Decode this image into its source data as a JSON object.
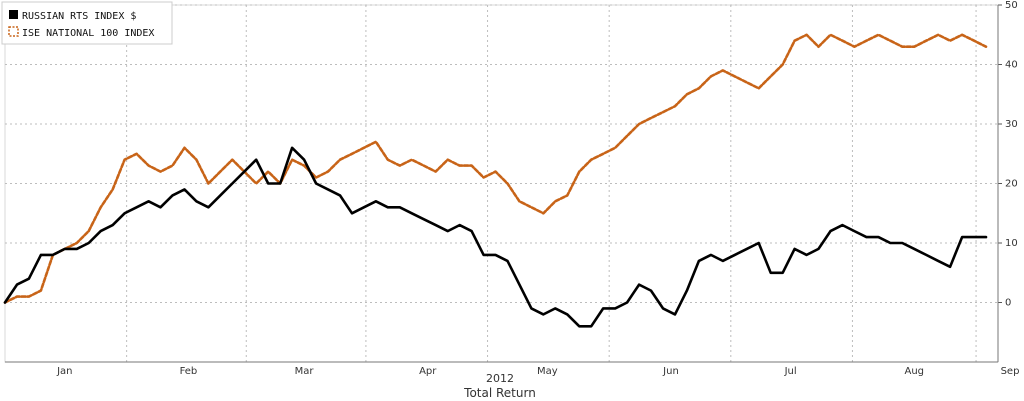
{
  "chart_data": {
    "type": "line",
    "title": "",
    "xlabel": "2012",
    "caption": "Total Return",
    "ylabel": "",
    "ylim": [
      -10,
      50
    ],
    "xlim": [
      0,
      249
    ],
    "y_ticks": [
      0,
      10,
      20,
      30,
      40,
      50
    ],
    "y_axis_side": "right",
    "month_labels": [
      {
        "label": "Jan",
        "x": 15
      },
      {
        "label": "Feb",
        "x": 46
      },
      {
        "label": "Mar",
        "x": 75
      },
      {
        "label": "Apr",
        "x": 106
      },
      {
        "label": "May",
        "x": 136
      },
      {
        "label": "Jun",
        "x": 167
      },
      {
        "label": "Jul",
        "x": 197
      },
      {
        "label": "Aug",
        "x": 228
      },
      {
        "label": "Sep",
        "x": 259
      }
    ],
    "grid": true,
    "legend_position": "top-left",
    "series": [
      {
        "name": "RUSSIAN RTS INDEX $",
        "color": "#000000",
        "style": "solid",
        "points": [
          [
            0,
            0
          ],
          [
            3,
            3
          ],
          [
            6,
            4
          ],
          [
            9,
            8
          ],
          [
            12,
            8
          ],
          [
            15,
            9
          ],
          [
            18,
            9
          ],
          [
            21,
            10
          ],
          [
            24,
            12
          ],
          [
            27,
            13
          ],
          [
            30,
            15
          ],
          [
            33,
            16
          ],
          [
            36,
            17
          ],
          [
            39,
            16
          ],
          [
            42,
            18
          ],
          [
            45,
            19
          ],
          [
            48,
            17
          ],
          [
            51,
            16
          ],
          [
            54,
            18
          ],
          [
            57,
            20
          ],
          [
            60,
            22
          ],
          [
            63,
            24
          ],
          [
            66,
            20
          ],
          [
            69,
            20
          ],
          [
            72,
            26
          ],
          [
            75,
            24
          ],
          [
            78,
            20
          ],
          [
            81,
            19
          ],
          [
            84,
            18
          ],
          [
            87,
            15
          ],
          [
            90,
            16
          ],
          [
            93,
            17
          ],
          [
            96,
            16
          ],
          [
            99,
            16
          ],
          [
            102,
            15
          ],
          [
            105,
            14
          ],
          [
            108,
            13
          ],
          [
            111,
            12
          ],
          [
            114,
            13
          ],
          [
            117,
            12
          ],
          [
            120,
            8
          ],
          [
            123,
            8
          ],
          [
            126,
            7
          ],
          [
            129,
            3
          ],
          [
            132,
            -1
          ],
          [
            135,
            -2
          ],
          [
            138,
            -1
          ],
          [
            141,
            -2
          ],
          [
            144,
            -4
          ],
          [
            147,
            -4
          ],
          [
            150,
            -1
          ],
          [
            153,
            -1
          ],
          [
            156,
            0
          ],
          [
            159,
            3
          ],
          [
            162,
            2
          ],
          [
            165,
            -1
          ],
          [
            168,
            -2
          ],
          [
            171,
            2
          ],
          [
            174,
            7
          ],
          [
            177,
            8
          ],
          [
            180,
            7
          ],
          [
            183,
            8
          ],
          [
            186,
            9
          ],
          [
            189,
            10
          ],
          [
            192,
            5
          ],
          [
            195,
            5
          ],
          [
            198,
            9
          ],
          [
            201,
            8
          ],
          [
            204,
            9
          ],
          [
            207,
            12
          ],
          [
            210,
            13
          ],
          [
            213,
            12
          ],
          [
            216,
            11
          ],
          [
            219,
            11
          ],
          [
            222,
            10
          ],
          [
            225,
            10
          ],
          [
            228,
            9
          ],
          [
            231,
            8
          ],
          [
            234,
            7
          ],
          [
            237,
            6
          ],
          [
            240,
            11
          ],
          [
            243,
            11
          ],
          [
            246,
            11
          ]
        ]
      },
      {
        "name": "ISE NATIONAL 100 INDEX",
        "color": "#c86418",
        "style": "dashed",
        "points": [
          [
            0,
            0
          ],
          [
            3,
            1
          ],
          [
            6,
            1
          ],
          [
            9,
            2
          ],
          [
            12,
            8
          ],
          [
            15,
            9
          ],
          [
            18,
            10
          ],
          [
            21,
            12
          ],
          [
            24,
            16
          ],
          [
            27,
            19
          ],
          [
            30,
            24
          ],
          [
            33,
            25
          ],
          [
            36,
            23
          ],
          [
            39,
            22
          ],
          [
            42,
            23
          ],
          [
            45,
            26
          ],
          [
            48,
            24
          ],
          [
            51,
            20
          ],
          [
            54,
            22
          ],
          [
            57,
            24
          ],
          [
            60,
            22
          ],
          [
            63,
            20
          ],
          [
            66,
            22
          ],
          [
            69,
            20
          ],
          [
            72,
            24
          ],
          [
            75,
            23
          ],
          [
            78,
            21
          ],
          [
            81,
            22
          ],
          [
            84,
            24
          ],
          [
            87,
            25
          ],
          [
            90,
            26
          ],
          [
            93,
            27
          ],
          [
            96,
            24
          ],
          [
            99,
            23
          ],
          [
            102,
            24
          ],
          [
            105,
            23
          ],
          [
            108,
            22
          ],
          [
            111,
            24
          ],
          [
            114,
            23
          ],
          [
            117,
            23
          ],
          [
            120,
            21
          ],
          [
            123,
            22
          ],
          [
            126,
            20
          ],
          [
            129,
            17
          ],
          [
            132,
            16
          ],
          [
            135,
            15
          ],
          [
            138,
            17
          ],
          [
            141,
            18
          ],
          [
            144,
            22
          ],
          [
            147,
            24
          ],
          [
            150,
            25
          ],
          [
            153,
            26
          ],
          [
            156,
            28
          ],
          [
            159,
            30
          ],
          [
            162,
            31
          ],
          [
            165,
            32
          ],
          [
            168,
            33
          ],
          [
            171,
            35
          ],
          [
            174,
            36
          ],
          [
            177,
            38
          ],
          [
            180,
            39
          ],
          [
            183,
            38
          ],
          [
            186,
            37
          ],
          [
            189,
            36
          ],
          [
            192,
            38
          ],
          [
            195,
            40
          ],
          [
            198,
            44
          ],
          [
            201,
            45
          ],
          [
            204,
            43
          ],
          [
            207,
            45
          ],
          [
            210,
            44
          ],
          [
            213,
            43
          ],
          [
            216,
            44
          ],
          [
            219,
            45
          ],
          [
            222,
            44
          ],
          [
            225,
            43
          ],
          [
            228,
            43
          ],
          [
            231,
            44
          ],
          [
            234,
            45
          ],
          [
            237,
            44
          ],
          [
            240,
            45
          ],
          [
            243,
            44
          ],
          [
            246,
            43
          ]
        ]
      }
    ]
  }
}
